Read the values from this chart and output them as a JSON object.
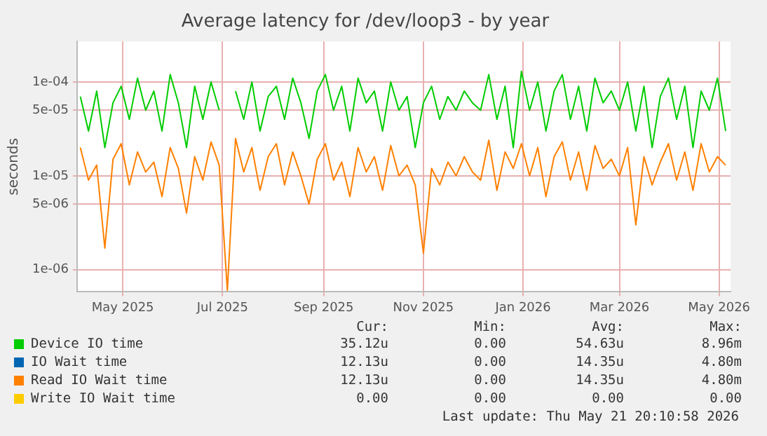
{
  "chart_data": {
    "type": "line",
    "title": "Average latency for /dev/loop3 - by year",
    "ylabel": "seconds",
    "log": "y",
    "grid": true,
    "legend": "bottom",
    "marker": "none",
    "line_style": "solid",
    "x": [
      "2025-04-05",
      "2025-04-10",
      "2025-04-15",
      "2025-04-20",
      "2025-04-25",
      "2025-04-30",
      "2025-05-05",
      "2025-05-10",
      "2025-05-15",
      "2025-05-20",
      "2025-05-25",
      "2025-05-30",
      "2025-06-04",
      "2025-06-09",
      "2025-06-14",
      "2025-06-19",
      "2025-06-24",
      "2025-06-29",
      "2025-07-04",
      "2025-07-09",
      "2025-07-14",
      "2025-07-19",
      "2025-07-24",
      "2025-07-29",
      "2025-08-03",
      "2025-08-08",
      "2025-08-13",
      "2025-08-18",
      "2025-08-23",
      "2025-08-28",
      "2025-09-02",
      "2025-09-07",
      "2025-09-12",
      "2025-09-17",
      "2025-09-22",
      "2025-09-27",
      "2025-10-02",
      "2025-10-07",
      "2025-10-12",
      "2025-10-17",
      "2025-10-22",
      "2025-10-27",
      "2025-11-01",
      "2025-11-06",
      "2025-11-11",
      "2025-11-16",
      "2025-11-21",
      "2025-11-26",
      "2025-12-01",
      "2025-12-06",
      "2025-12-11",
      "2025-12-16",
      "2025-12-21",
      "2025-12-26",
      "2025-12-31",
      "2026-01-05",
      "2026-01-10",
      "2026-01-15",
      "2026-01-20",
      "2026-01-25",
      "2026-01-30",
      "2026-02-04",
      "2026-02-09",
      "2026-02-14",
      "2026-02-19",
      "2026-02-24",
      "2026-03-01",
      "2026-03-06",
      "2026-03-11",
      "2026-03-16",
      "2026-03-21",
      "2026-03-26",
      "2026-03-31",
      "2026-04-05",
      "2026-04-10",
      "2026-04-15",
      "2026-04-20",
      "2026-04-25",
      "2026-04-30",
      "2026-05-05"
    ],
    "xlim": [
      "2025-04-03",
      "2026-05-08"
    ],
    "xticks": [
      {
        "value": "2025-05-01",
        "label": "May 2025"
      },
      {
        "value": "2025-07-01",
        "label": "Jul 2025"
      },
      {
        "value": "2025-09-01",
        "label": "Sep 2025"
      },
      {
        "value": "2025-11-01",
        "label": "Nov 2025"
      },
      {
        "value": "2026-01-01",
        "label": "Jan 2026"
      },
      {
        "value": "2026-03-01",
        "label": "Mar 2026"
      },
      {
        "value": "2026-05-01",
        "label": "May 2026"
      }
    ],
    "ylim": [
      5.8e-07,
      0.00027
    ],
    "yticks": [
      {
        "value": 1e-06,
        "label": "1e-06"
      },
      {
        "value": 5e-06,
        "label": "5e-06"
      },
      {
        "value": 1e-05,
        "label": "1e-05"
      },
      {
        "value": 5e-05,
        "label": "5e-05"
      },
      {
        "value": 0.0001,
        "label": "1e-04"
      }
    ],
    "series": [
      {
        "name": "Device IO time",
        "color": "#00cc00",
        "values": [
          7e-05,
          3e-05,
          8e-05,
          2e-05,
          6e-05,
          9e-05,
          4e-05,
          0.00011,
          5e-05,
          8e-05,
          3e-05,
          0.00012,
          6e-05,
          2e-05,
          9e-05,
          4e-05,
          0.0001,
          5e-05,
          null,
          8e-05,
          4e-05,
          0.0001,
          3e-05,
          7e-05,
          9e-05,
          4e-05,
          0.00011,
          6e-05,
          2.5e-05,
          8e-05,
          0.00012,
          5e-05,
          9e-05,
          3e-05,
          0.00011,
          6e-05,
          8e-05,
          3e-05,
          0.0001,
          5e-05,
          7e-05,
          2e-05,
          6e-05,
          9e-05,
          4e-05,
          7e-05,
          5e-05,
          8e-05,
          6e-05,
          5e-05,
          0.00012,
          4e-05,
          9e-05,
          2e-05,
          0.00013,
          5e-05,
          0.0001,
          3e-05,
          8e-05,
          0.00012,
          4e-05,
          9e-05,
          3e-05,
          0.00011,
          6e-05,
          8e-05,
          5e-05,
          0.0001,
          3e-05,
          9e-05,
          2e-05,
          7e-05,
          0.00011,
          4e-05,
          9e-05,
          2e-05,
          8e-05,
          5e-05,
          0.00011,
          3e-05
        ]
      },
      {
        "name": "IO Wait time",
        "color": "#0066b3",
        "values": [
          null,
          null,
          null,
          null,
          null,
          null,
          null,
          null,
          null,
          null,
          null,
          null,
          null,
          null,
          null,
          null,
          null,
          null,
          null,
          null,
          null,
          null,
          null,
          null,
          null,
          null,
          null,
          null,
          null,
          null,
          null,
          null,
          null,
          null,
          null,
          null,
          null,
          null,
          null,
          null,
          null,
          null,
          null,
          null,
          null,
          null,
          null,
          null,
          null,
          null,
          null,
          null,
          null,
          null,
          null,
          null,
          null,
          null,
          null,
          null,
          null,
          null,
          null,
          null,
          null,
          null,
          null,
          null,
          null,
          null,
          null,
          null,
          null,
          null,
          null,
          null,
          null,
          null,
          null,
          null
        ]
      },
      {
        "name": "Read IO Wait time",
        "color": "#ff8000",
        "values": [
          2e-05,
          9e-06,
          1.3e-05,
          1.7e-06,
          1.5e-05,
          2.2e-05,
          8e-06,
          1.8e-05,
          1.1e-05,
          1.4e-05,
          6e-06,
          2e-05,
          1.2e-05,
          4e-06,
          1.6e-05,
          9e-06,
          2.3e-05,
          1.3e-05,
          6e-07,
          2.5e-05,
          1.1e-05,
          2e-05,
          7e-06,
          1.6e-05,
          2.2e-05,
          8e-06,
          1.8e-05,
          1e-05,
          5e-06,
          1.5e-05,
          2.2e-05,
          9e-06,
          1.4e-05,
          6e-06,
          2e-05,
          1.1e-05,
          1.6e-05,
          7e-06,
          2.1e-05,
          1e-05,
          1.3e-05,
          8e-06,
          1.5e-06,
          1.2e-05,
          8e-06,
          1.4e-05,
          1e-05,
          1.6e-05,
          1.1e-05,
          9e-06,
          2.4e-05,
          7e-06,
          1.8e-05,
          1.2e-05,
          2.2e-05,
          1e-05,
          2e-05,
          6e-06,
          1.6e-05,
          2.3e-05,
          9e-06,
          1.8e-05,
          7e-06,
          2.1e-05,
          1.2e-05,
          1.5e-05,
          1e-05,
          2e-05,
          3e-06,
          1.6e-05,
          8e-06,
          1.4e-05,
          2.2e-05,
          9e-06,
          1.8e-05,
          7e-06,
          2.2e-05,
          1.1e-05,
          1.6e-05,
          1.3e-05
        ]
      },
      {
        "name": "Write IO Wait time",
        "color": "#ffcc00",
        "values": [
          null,
          null,
          null,
          null,
          null,
          null,
          null,
          null,
          null,
          null,
          null,
          null,
          null,
          null,
          null,
          null,
          null,
          null,
          null,
          null,
          null,
          null,
          null,
          null,
          null,
          null,
          null,
          null,
          null,
          null,
          null,
          null,
          null,
          null,
          null,
          null,
          null,
          null,
          null,
          null,
          null,
          null,
          null,
          null,
          null,
          null,
          null,
          null,
          null,
          null,
          null,
          null,
          null,
          null,
          null,
          null,
          null,
          null,
          null,
          null,
          null,
          null,
          null,
          null,
          null,
          null,
          null,
          null,
          null,
          null,
          null,
          null,
          null,
          null,
          null,
          null,
          null,
          null,
          null,
          null
        ]
      }
    ],
    "annotations": [
      "Cur:",
      "Min:",
      "Avg:",
      "Max:",
      "35.12u",
      "0.00",
      "54.63u",
      "8.96m",
      "12.13u",
      "0.00",
      "14.35u",
      "4.80m",
      "12.13u",
      "0.00",
      "14.35u",
      "4.80m",
      "0.00",
      "0.00",
      "0.00",
      "0.00",
      "Last update: Thu May 21 20:10:58 2026"
    ]
  }
}
